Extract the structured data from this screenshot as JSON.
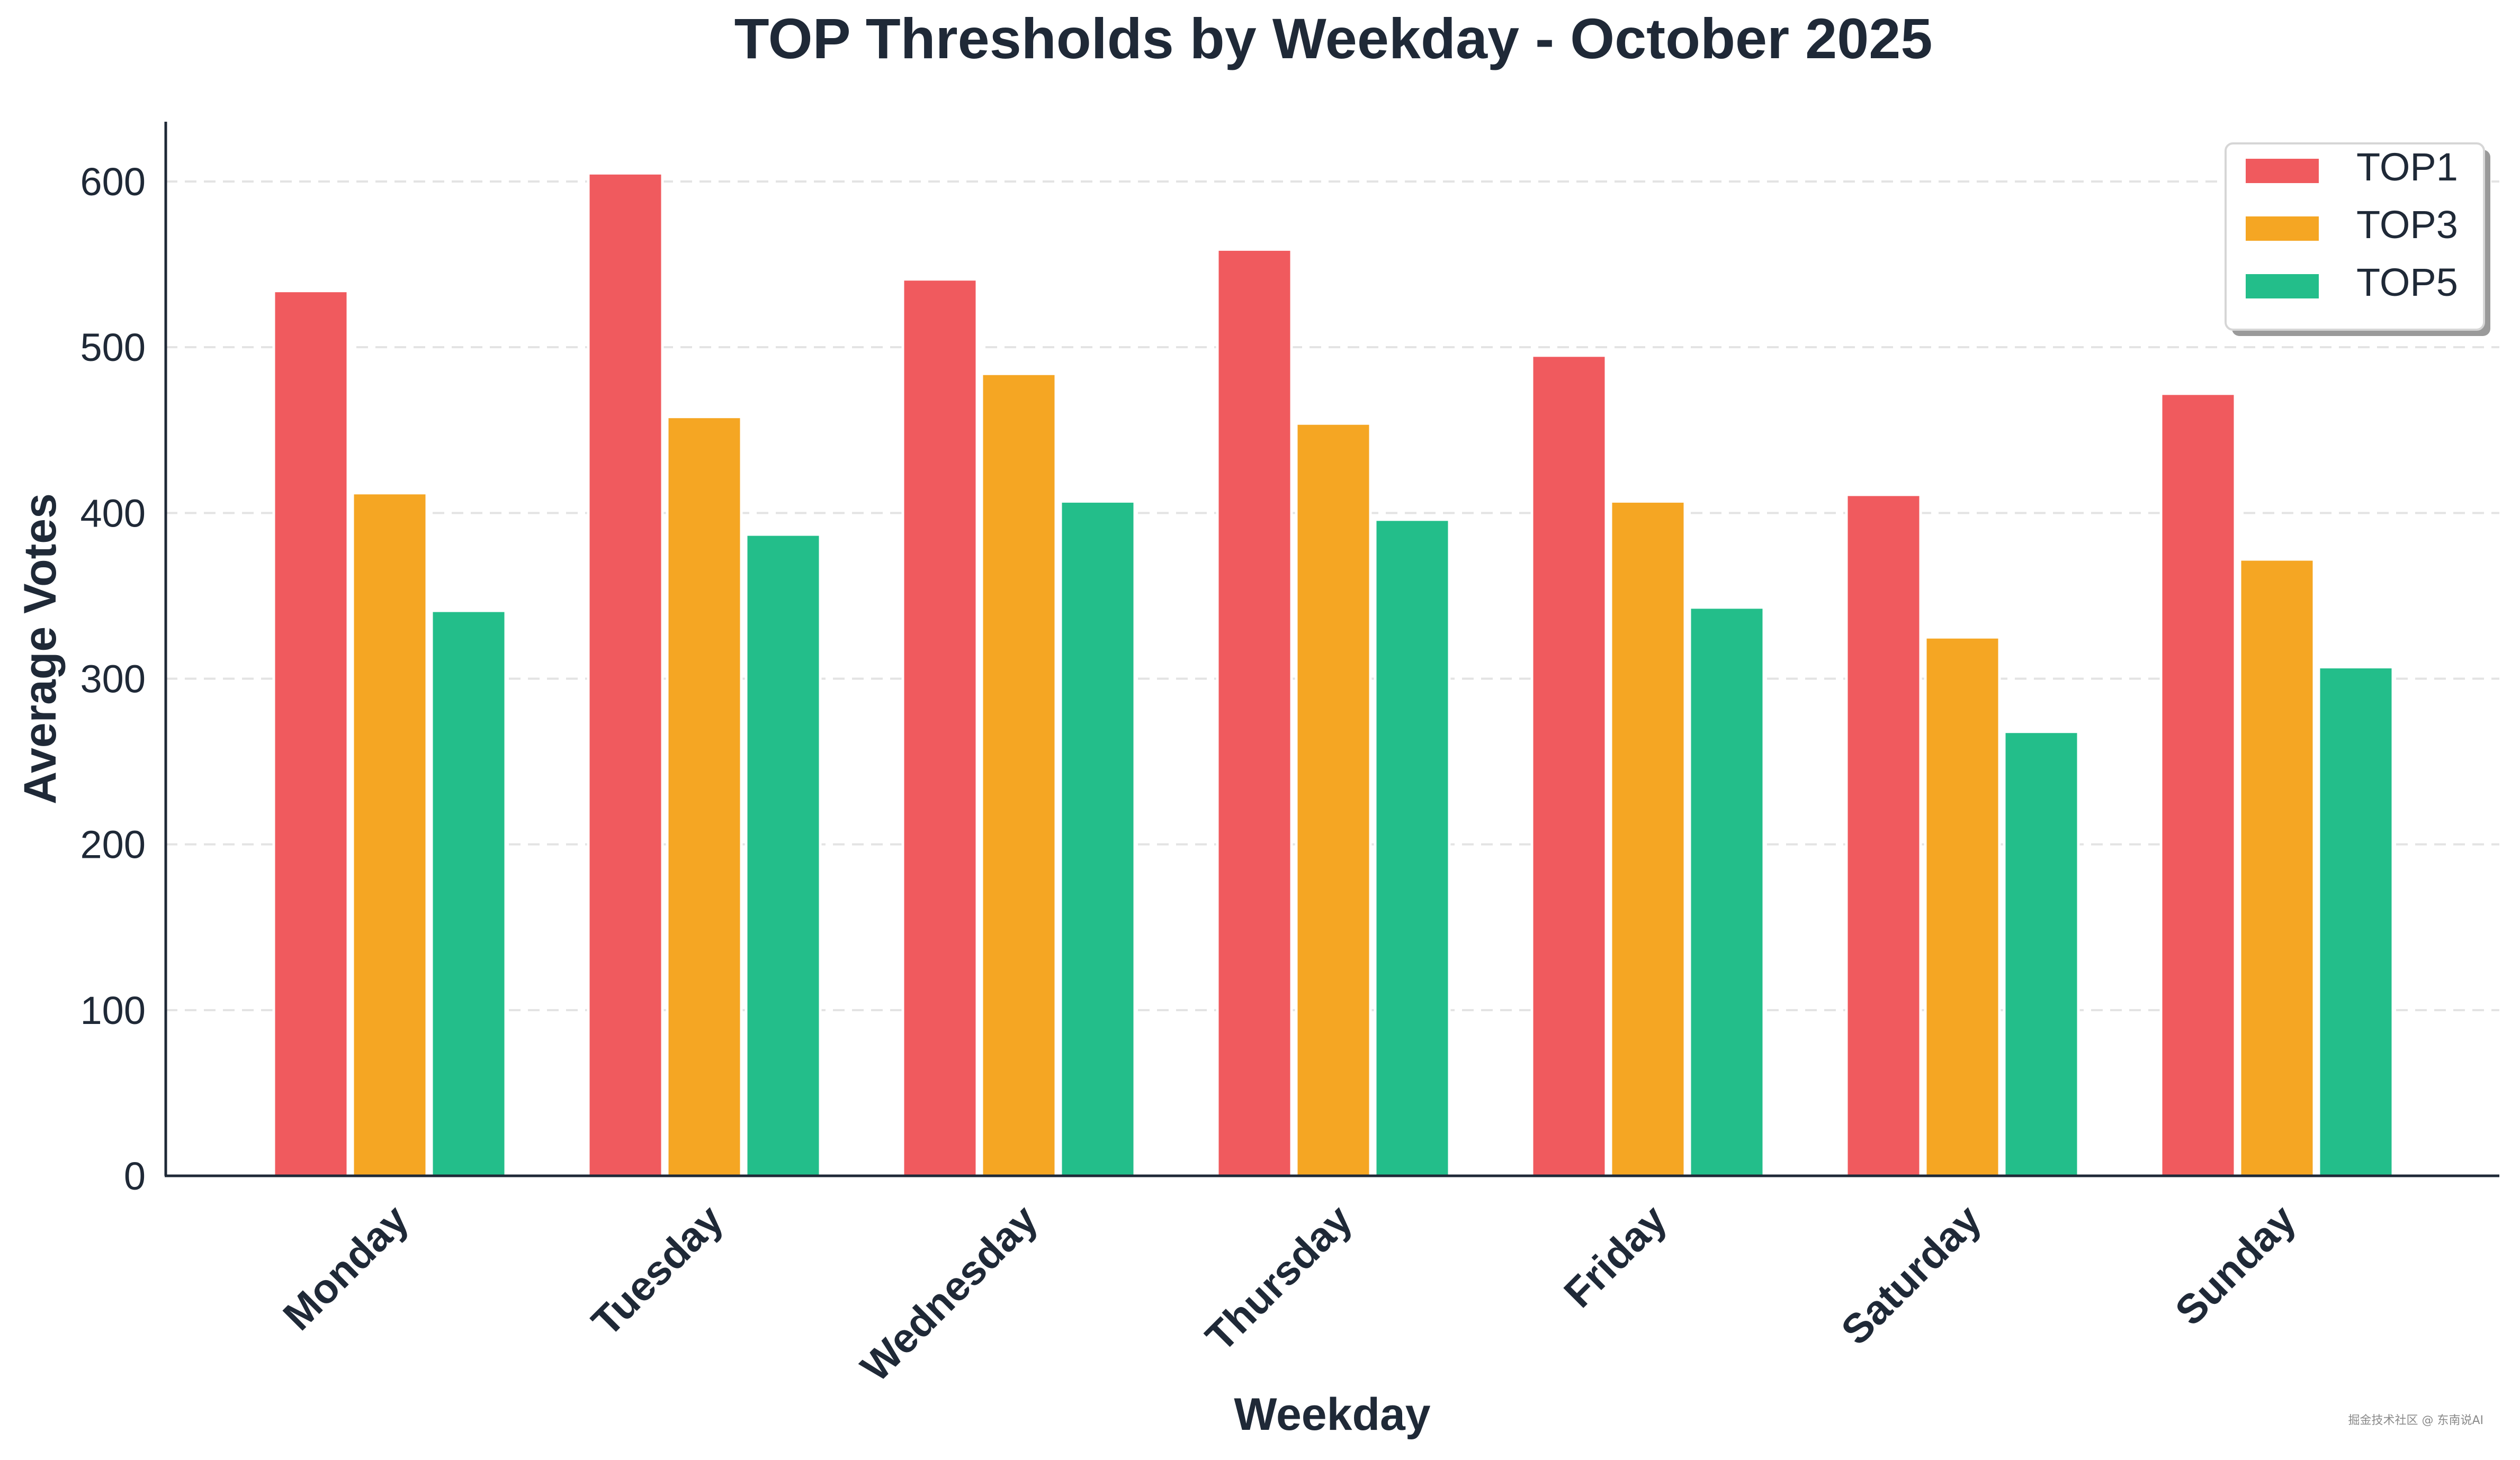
{
  "chart_data": {
    "type": "bar",
    "title": "TOP Thresholds by Weekday - October 2025",
    "xlabel": "Weekday",
    "ylabel": "Average Votes",
    "categories": [
      "Monday",
      "Tuesday",
      "Wednesday",
      "Thursday",
      "Friday",
      "Saturday",
      "Sunday"
    ],
    "series": [
      {
        "name": "TOP1",
        "color": "#f05a5e",
        "values": [
          534,
          605,
          541,
          559,
          495,
          411,
          472
        ]
      },
      {
        "name": "TOP3",
        "color": "#f5a623",
        "values": [
          412,
          458,
          484,
          454,
          407,
          325,
          372
        ]
      },
      {
        "name": "TOP5",
        "color": "#23be8a",
        "values": [
          341,
          387,
          407,
          396,
          343,
          268,
          307
        ]
      }
    ],
    "ylim": [
      0,
      637
    ],
    "yticks": [
      0,
      100,
      200,
      300,
      400,
      500,
      600
    ],
    "grid": "horizontal dashed",
    "legend_position": "top-right"
  },
  "watermark": "掘金技术社区 @ 东南说AI"
}
